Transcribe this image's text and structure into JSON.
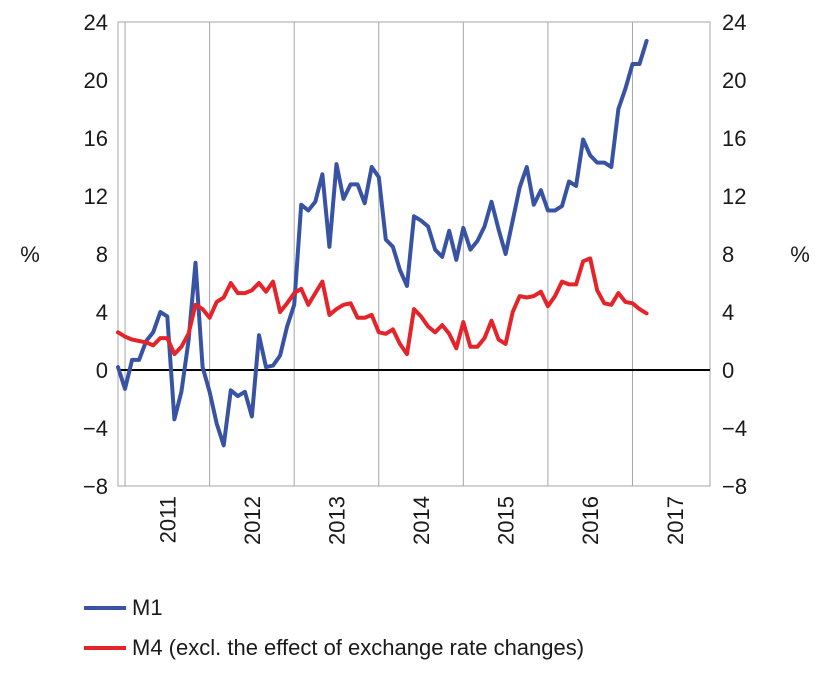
{
  "chart_data": {
    "type": "line",
    "x_tick_labels": [
      "2011",
      "2012",
      "2013",
      "2014",
      "2015",
      "2016",
      "2017"
    ],
    "x_start": 2010.9167,
    "x_end": 2017.9167,
    "ylim": [
      -8,
      24
    ],
    "yticks": [
      -8,
      -4,
      0,
      4,
      8,
      12,
      16,
      20,
      24
    ],
    "ytick_labels": [
      "−8",
      "−4",
      "0",
      "4",
      "8",
      "12",
      "16",
      "20",
      "24"
    ],
    "left_unit": "%",
    "right_unit": "%",
    "gridlines": "vertical",
    "legend_position": "bottom-left",
    "series": [
      {
        "name": "M1",
        "color": "#3853a4",
        "x_start": 2010.9167,
        "step_months": 1,
        "values": [
          0.2,
          -1.3,
          0.7,
          0.7,
          2.0,
          2.6,
          4.0,
          3.7,
          -3.4,
          -1.5,
          2.0,
          7.4,
          0.2,
          -1.5,
          -3.7,
          -5.2,
          -1.4,
          -1.8,
          -1.5,
          -3.2,
          2.4,
          0.2,
          0.3,
          1.0,
          3.0,
          4.5,
          11.4,
          11.0,
          11.6,
          13.5,
          8.5,
          14.2,
          11.8,
          12.8,
          12.8,
          11.5,
          14.0,
          13.3,
          9.0,
          8.5,
          6.9,
          5.8,
          10.6,
          10.3,
          9.9,
          8.3,
          7.8,
          9.6,
          7.6,
          9.8,
          8.3,
          8.9,
          9.9,
          11.6,
          9.7,
          8.0,
          10.3,
          12.6,
          14.0,
          11.4,
          12.4,
          11.0,
          11.0,
          11.3,
          13.0,
          12.7,
          15.9,
          14.8,
          14.3,
          14.3,
          14.0,
          18.0,
          19.4,
          21.1,
          21.1,
          22.7
        ]
      },
      {
        "name": "M4 (excl. the effect of exchange rate changes)",
        "color": "#e5242a",
        "x_start": 2010.9167,
        "step_months": 1,
        "values": [
          2.6,
          2.3,
          2.1,
          2.0,
          1.9,
          1.7,
          2.2,
          2.2,
          1.1,
          1.6,
          2.5,
          4.5,
          4.2,
          3.6,
          4.7,
          5.0,
          6.0,
          5.3,
          5.3,
          5.5,
          6.0,
          5.4,
          6.1,
          4.0,
          4.6,
          5.3,
          5.6,
          4.5,
          5.3,
          6.1,
          3.8,
          4.2,
          4.5,
          4.6,
          3.6,
          3.6,
          3.8,
          2.6,
          2.5,
          2.8,
          1.8,
          1.1,
          4.2,
          3.7,
          3.0,
          2.6,
          3.1,
          2.5,
          1.5,
          3.3,
          1.6,
          1.6,
          2.2,
          3.4,
          2.1,
          1.8,
          4.0,
          5.1,
          5.0,
          5.1,
          5.4,
          4.4,
          5.1,
          6.1,
          5.9,
          5.9,
          7.5,
          7.7,
          5.5,
          4.6,
          4.5,
          5.3,
          4.7,
          4.6,
          4.2,
          3.9
        ]
      }
    ]
  }
}
